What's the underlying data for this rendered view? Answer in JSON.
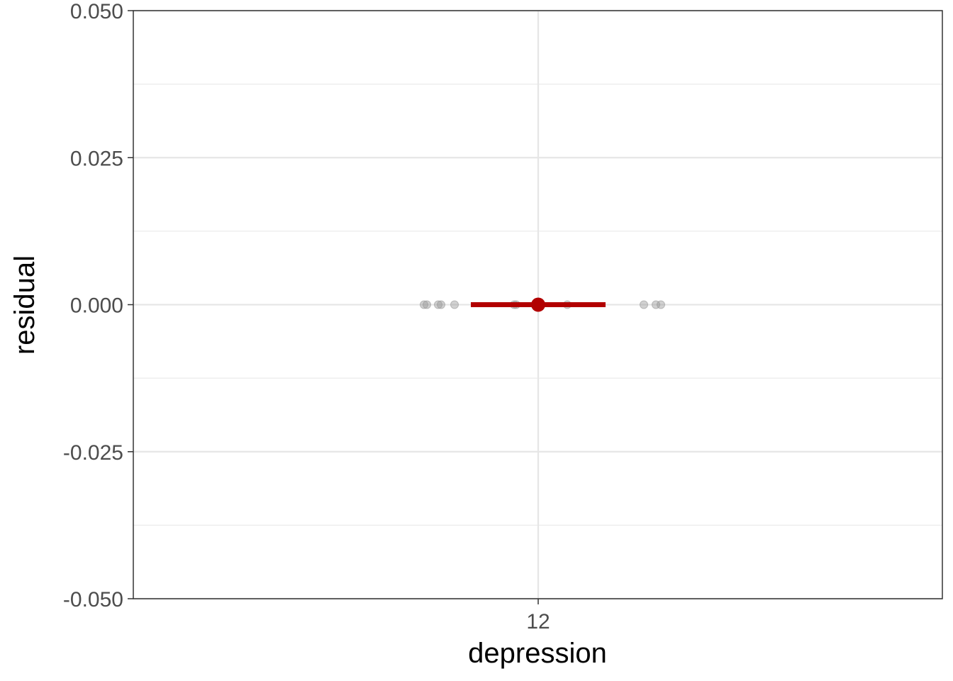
{
  "chart_data": {
    "type": "scatter",
    "xlabel": "depression",
    "ylabel": "residual",
    "categories": [
      "12"
    ],
    "ylim": [
      -0.05,
      0.05
    ],
    "y_ticks": [
      "0.050",
      "0.025",
      "0.000",
      "-0.025",
      "-0.050"
    ],
    "y_tick_values": [
      0.05,
      0.025,
      0.0,
      -0.025,
      -0.05
    ],
    "grid": true,
    "jitter_points": {
      "color": "#999999",
      "residuals": [
        0,
        0,
        0,
        0,
        0,
        0,
        0,
        0,
        0,
        0,
        0
      ]
    },
    "summary": {
      "color": "#b20000",
      "mean": 0.0,
      "ci": [
        0.0,
        0.0
      ]
    }
  }
}
